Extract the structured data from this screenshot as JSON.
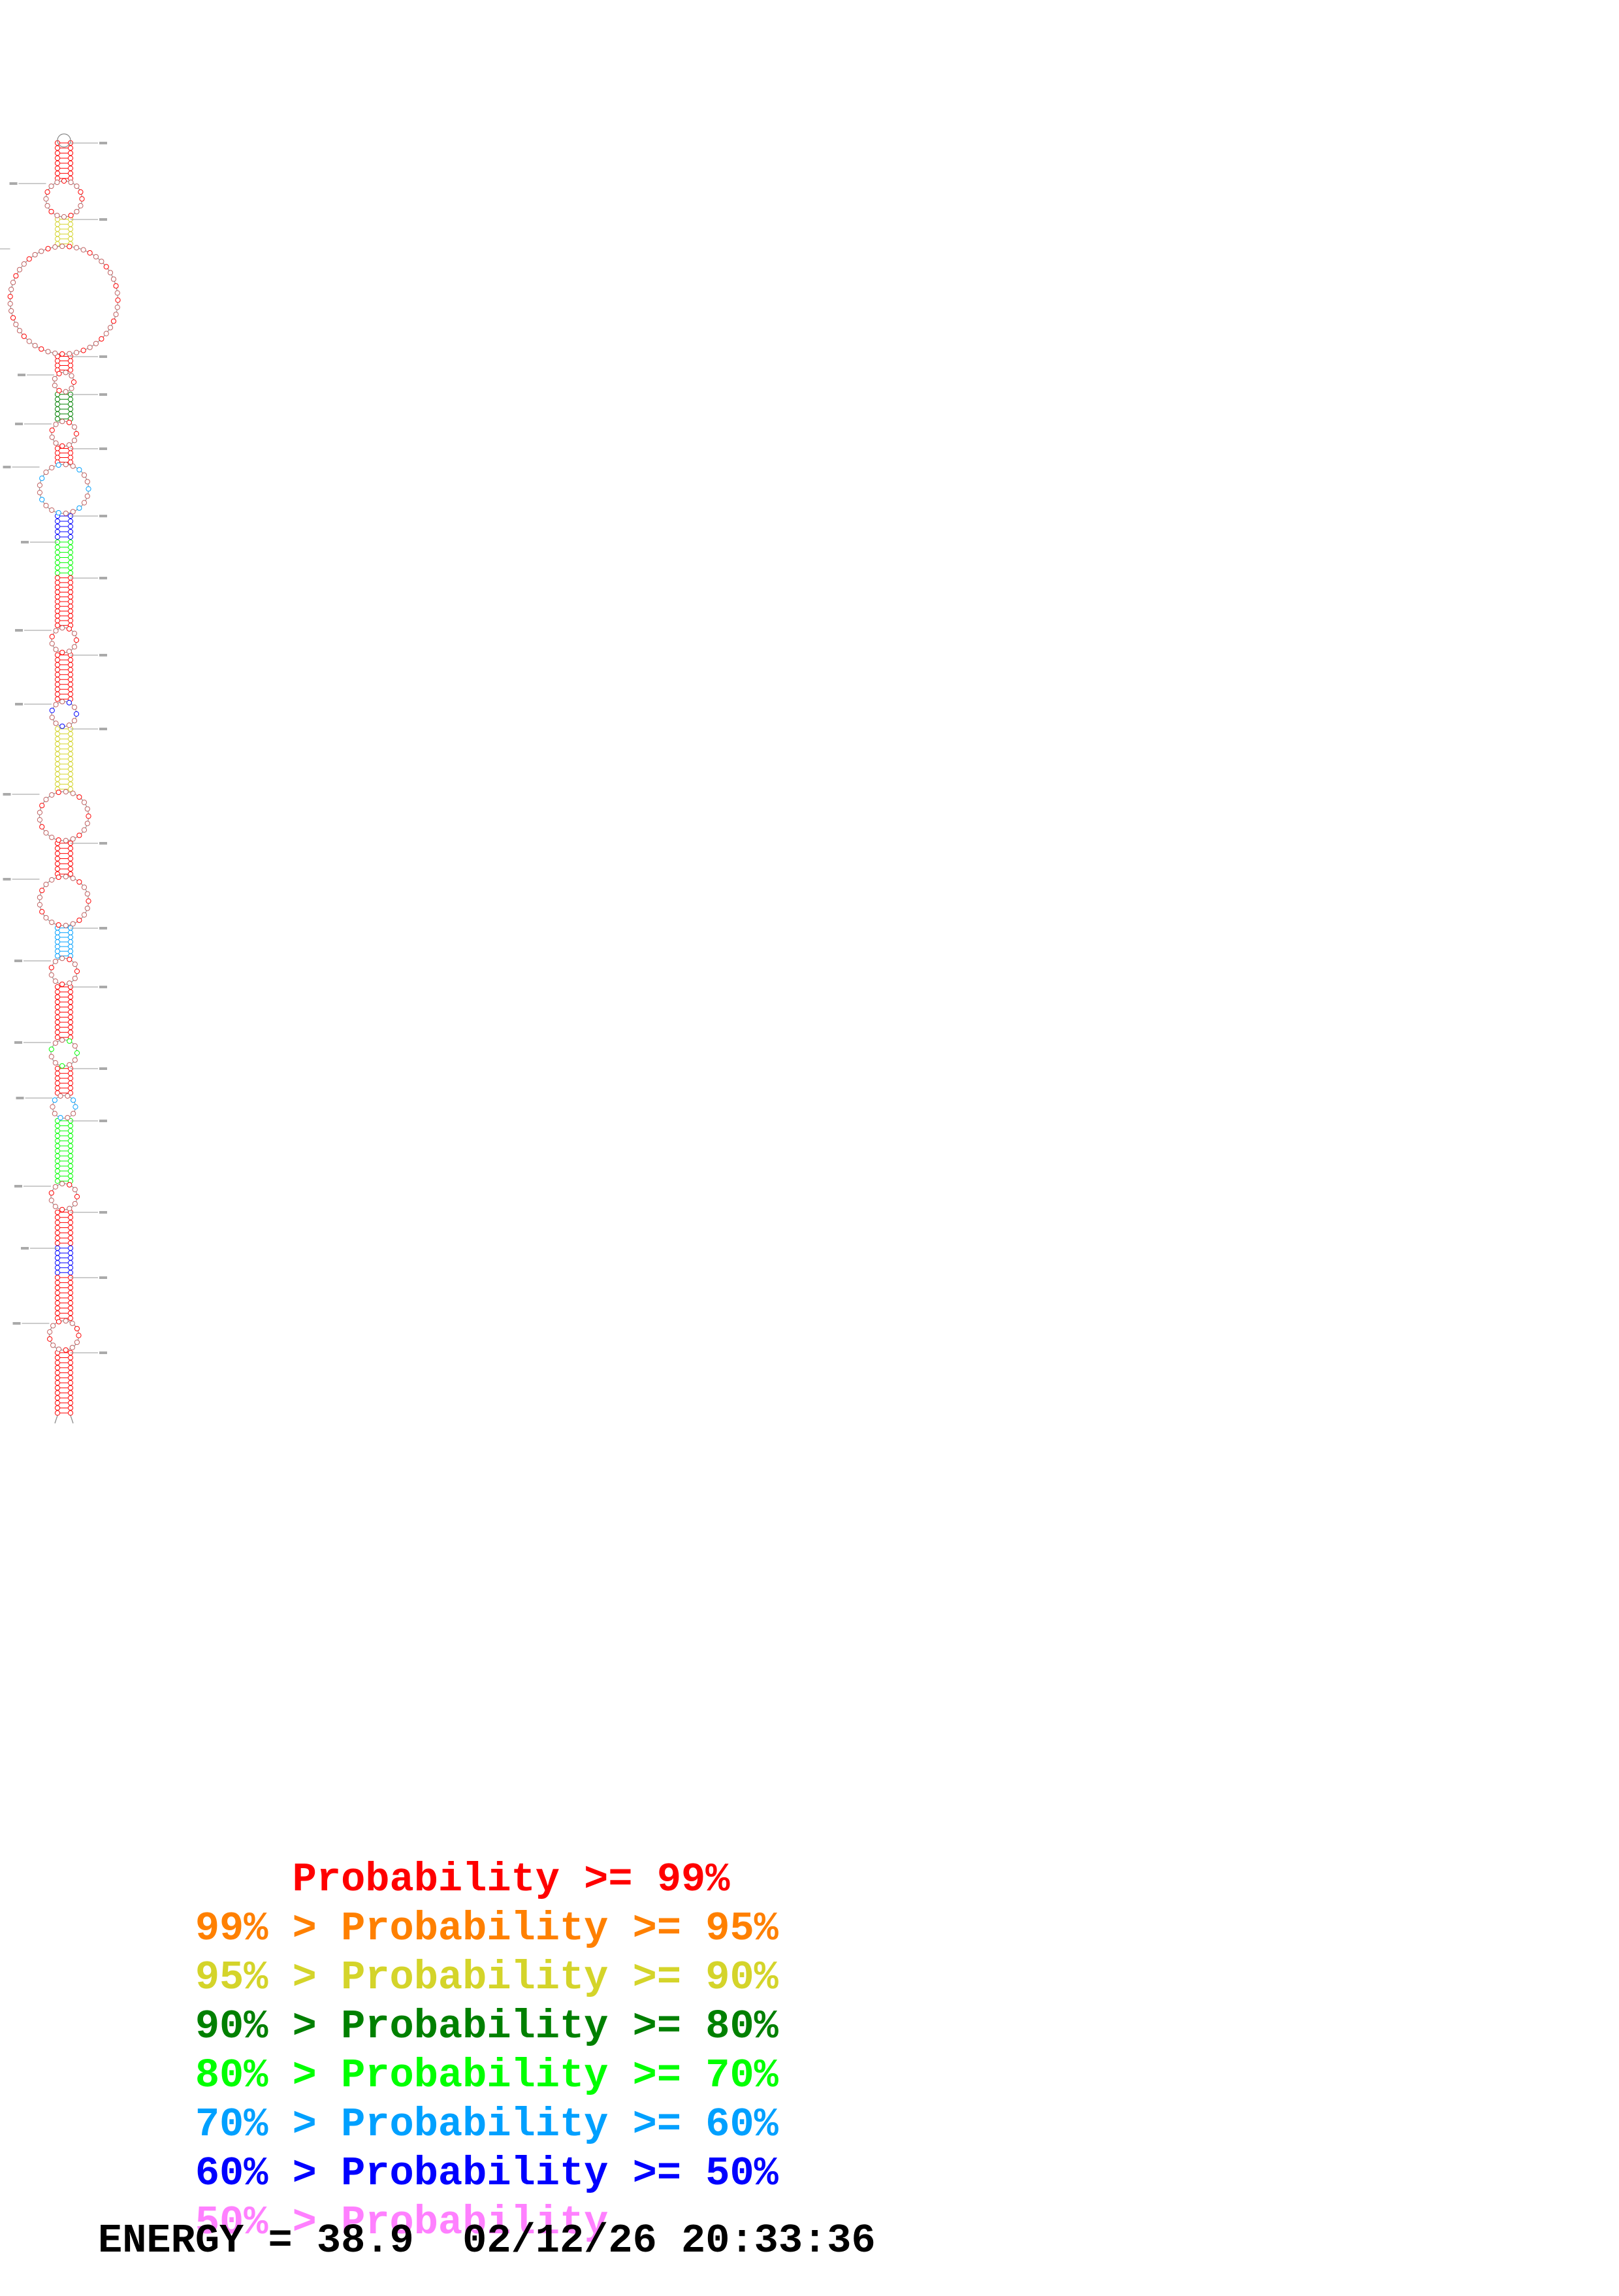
{
  "legend": {
    "rows": [
      {
        "lower": "",
        "sep": "",
        "label": "Probability",
        "op": ">=",
        "upper": "99%",
        "color": "#ff0000"
      },
      {
        "lower": "99%",
        "sep": ">",
        "label": "Probability",
        "op": ">=",
        "upper": "95%",
        "color": "#ff8000"
      },
      {
        "lower": "95%",
        "sep": ">",
        "label": "Probability",
        "op": ">=",
        "upper": "90%",
        "color": "#d4d42a"
      },
      {
        "lower": "90%",
        "sep": ">",
        "label": "Probability",
        "op": ">=",
        "upper": "80%",
        "color": "#008000"
      },
      {
        "lower": "80%",
        "sep": ">",
        "label": "Probability",
        "op": ">=",
        "upper": "70%",
        "color": "#00ff00"
      },
      {
        "lower": "70%",
        "sep": ">",
        "label": "Probability",
        "op": ">=",
        "upper": "60%",
        "color": "#00a0ff"
      },
      {
        "lower": "60%",
        "sep": ">",
        "label": "Probability",
        "op": ">=",
        "upper": "50%",
        "color": "#0000ff"
      },
      {
        "lower": "50%",
        "sep": ">",
        "label": "Probability",
        "op": "",
        "upper": "",
        "color": "#ff80ff"
      }
    ]
  },
  "footer": {
    "energy_label": "ENERGY",
    "equals": "=",
    "energy_value": "38.9",
    "date": "02/12/26",
    "time": "20:33:36"
  }
}
